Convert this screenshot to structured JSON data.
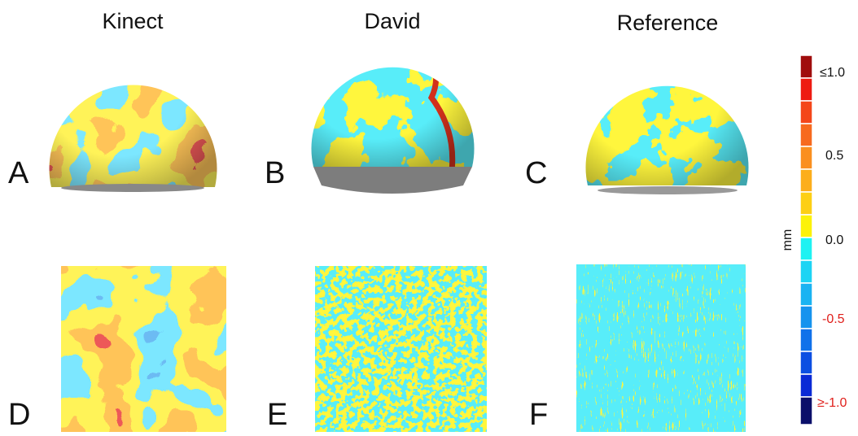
{
  "columns": [
    "Kinect",
    "David",
    "Reference"
  ],
  "panels": [
    "A",
    "B",
    "C",
    "D",
    "E",
    "F"
  ],
  "colorbar": {
    "unit": "mm",
    "labels": [
      "≤1.0",
      "0.5",
      "0.0",
      "-0.5",
      "≥-1.0"
    ]
  }
}
